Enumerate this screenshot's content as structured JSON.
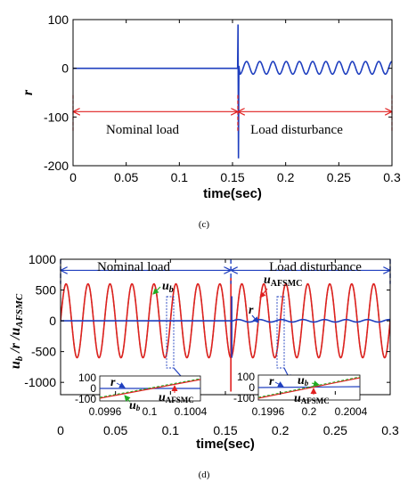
{
  "chart_data": [
    {
      "type": "line",
      "panel": "c",
      "caption": "(c)",
      "xlabel": "time(sec)",
      "ylabel": "r",
      "xlim": [
        0,
        0.3
      ],
      "ylim": [
        -200,
        100
      ],
      "x_ticks": [
        "0",
        "0.05",
        "0.1",
        "0.15",
        "0.2",
        "0.25",
        "0.3"
      ],
      "y_ticks": [
        "100",
        "0",
        "-100",
        "-200"
      ],
      "grid": false,
      "series": [
        {
          "color": "#1f3fbf",
          "description": "r stays at 0 until disturbance at t≈0.155, spikes to ~+90 and ~-185, then oscillates between about -12 and +14",
          "points": [
            [
              0,
              0
            ],
            [
              0.1548,
              0
            ],
            [
              0.1552,
              90
            ],
            [
              0.1556,
              -185
            ],
            [
              0.156,
              5
            ],
            [
              0.3,
              2
            ]
          ],
          "oscillation": {
            "start": 0.157,
            "end": 0.3,
            "cycles": 11.5,
            "amplitude": 13,
            "offset": 1
          }
        }
      ],
      "annotations": [
        {
          "text": "Nominal load",
          "x": 0.065,
          "y": -130
        },
        {
          "text": "Load disturbance",
          "x": 0.225,
          "y": -130
        }
      ],
      "region_arrows": [
        [
          0,
          0.155
        ],
        [
          0.155,
          0.3
        ]
      ],
      "region_arrow_y": -89,
      "dividers": [
        0,
        0.155,
        0.3
      ]
    },
    {
      "type": "line",
      "panel": "d",
      "caption": "(d)",
      "xlabel": "time(sec)",
      "ylabel": "u_b /r /u_AFSMC",
      "xlim": [
        0,
        0.3
      ],
      "ylim": [
        -1200,
        1000
      ],
      "x_ticks": [
        "0",
        "0.05",
        "0.1",
        "0.15",
        "0.2",
        "0.25",
        "0.3"
      ],
      "y_ticks": [
        "1000",
        "500",
        "0",
        "-500",
        "-1000"
      ],
      "grid": false,
      "series": [
        {
          "name": "u_b",
          "color": "#22aa22",
          "style": "dashed",
          "amplitude": 600,
          "frequency_hz": 50
        },
        {
          "name": "u_AFSMC",
          "color": "#e02020",
          "amplitude": 600,
          "frequency_hz": 50
        },
        {
          "name": "r",
          "color": "#1f3fbf",
          "amplitude": 0,
          "disturbance_amplitude": 20
        }
      ],
      "annotations": [
        {
          "text": "Nominal load",
          "x": 0.055,
          "y": 850
        },
        {
          "text": "Load disturbance",
          "x": 0.23,
          "y": 850
        },
        {
          "label_base": "u",
          "label_sub": "b",
          "x": 0.093,
          "y": 580
        },
        {
          "label_base": "u",
          "label_sub": "AFSMC",
          "x": 0.182,
          "y": 590
        },
        {
          "label_base": "r",
          "x": 0.172,
          "y": 100
        }
      ],
      "region_arrows": [
        [
          0,
          0.155
        ],
        [
          0.155,
          0.3
        ]
      ],
      "region_arrow_y": 820,
      "insets": [
        {
          "x_ticks": [
            "0.0996",
            "0.1",
            "0.1004"
          ],
          "y_ticks": [
            "100",
            "0",
            "-100"
          ],
          "labels": [
            {
              "label_base": "r"
            },
            {
              "label_base": "u",
              "label_sub": "b"
            },
            {
              "label_base": "u",
              "label_sub": "AFSMC"
            }
          ]
        },
        {
          "x_ticks": [
            "0.1996",
            "0.2",
            "0.2004"
          ],
          "y_ticks": [
            "100",
            "0",
            "-100"
          ],
          "labels": [
            {
              "label_base": "r"
            },
            {
              "label_base": "u",
              "label_sub": "b"
            },
            {
              "label_base": "u",
              "label_sub": "AFSMC"
            }
          ]
        }
      ]
    }
  ]
}
